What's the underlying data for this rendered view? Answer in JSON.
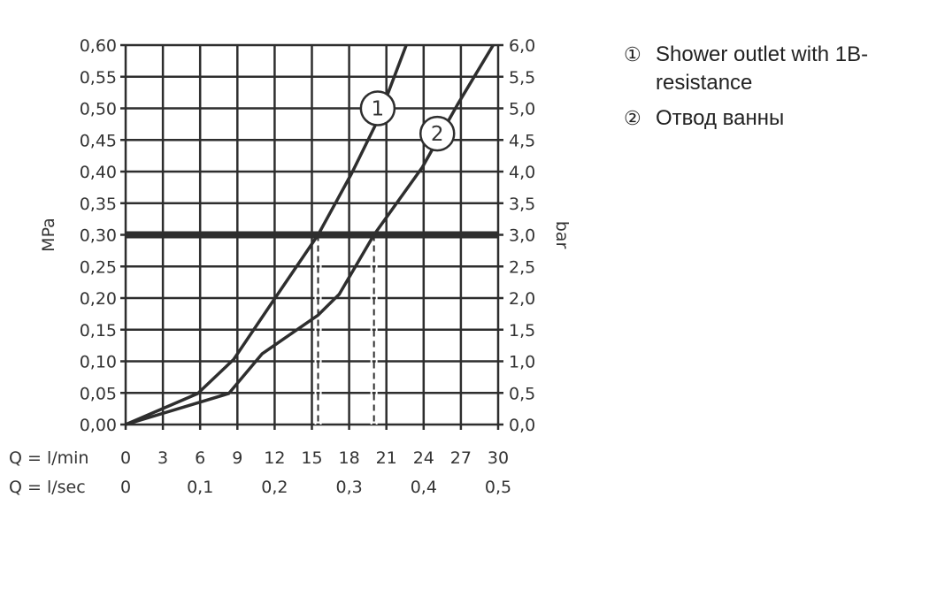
{
  "chart_data": {
    "type": "line",
    "title": "",
    "ylabel": "MPa",
    "ylabel_right": "bar",
    "xlim": [
      0,
      30
    ],
    "ylim": [
      0,
      0.6
    ],
    "grid": true,
    "x_ticks_lmin": [
      "0",
      "3",
      "6",
      "9",
      "12",
      "15",
      "18",
      "21",
      "24",
      "27",
      "30"
    ],
    "x_ticks_lsec": [
      {
        "q": 0,
        "label": "0"
      },
      {
        "q": 6,
        "label": "0,1"
      },
      {
        "q": 12,
        "label": "0,2"
      },
      {
        "q": 18,
        "label": "0,3"
      },
      {
        "q": 24,
        "label": "0,4"
      },
      {
        "q": 30,
        "label": "0,5"
      }
    ],
    "x_row_labels": [
      "Q = l/min",
      "Q = l/sec"
    ],
    "y_ticks_left": [
      "0,00",
      "0,05",
      "0,10",
      "0,15",
      "0,20",
      "0,25",
      "0,30",
      "0,35",
      "0,40",
      "0,45",
      "0,50",
      "0,55",
      "0,60"
    ],
    "y_ticks_right": [
      "0,0",
      "0,5",
      "1,0",
      "1,5",
      "2,0",
      "2,5",
      "3,0",
      "3,5",
      "4,0",
      "4,5",
      "5,0",
      "5,5",
      "6,0"
    ],
    "reference_line": {
      "y": 0.3
    },
    "drop_lines_x": [
      15.5,
      20.0
    ],
    "series": [
      {
        "marker": "1",
        "label_at": [
          20.3,
          0.5
        ],
        "points": [
          [
            0,
            0
          ],
          [
            5.8,
            0.049
          ],
          [
            8.7,
            0.103
          ],
          [
            12.0,
            0.199
          ],
          [
            15.5,
            0.3
          ],
          [
            18.2,
            0.397
          ],
          [
            20.3,
            0.481
          ],
          [
            22.6,
            0.6
          ]
        ]
      },
      {
        "marker": "2",
        "label_at": [
          25.1,
          0.46
        ],
        "points": [
          [
            0,
            0
          ],
          [
            8.3,
            0.049
          ],
          [
            11.0,
            0.112
          ],
          [
            15.5,
            0.173
          ],
          [
            17.2,
            0.206
          ],
          [
            20.0,
            0.3
          ],
          [
            23.9,
            0.407
          ],
          [
            26.7,
            0.505
          ],
          [
            29.6,
            0.6
          ]
        ]
      }
    ],
    "legend": [
      {
        "mark": "①",
        "text": "Shower outlet with 1B-resistance"
      },
      {
        "mark": "②",
        "text": "Отвод ванны"
      }
    ],
    "line_color": "#2e2e2e"
  }
}
